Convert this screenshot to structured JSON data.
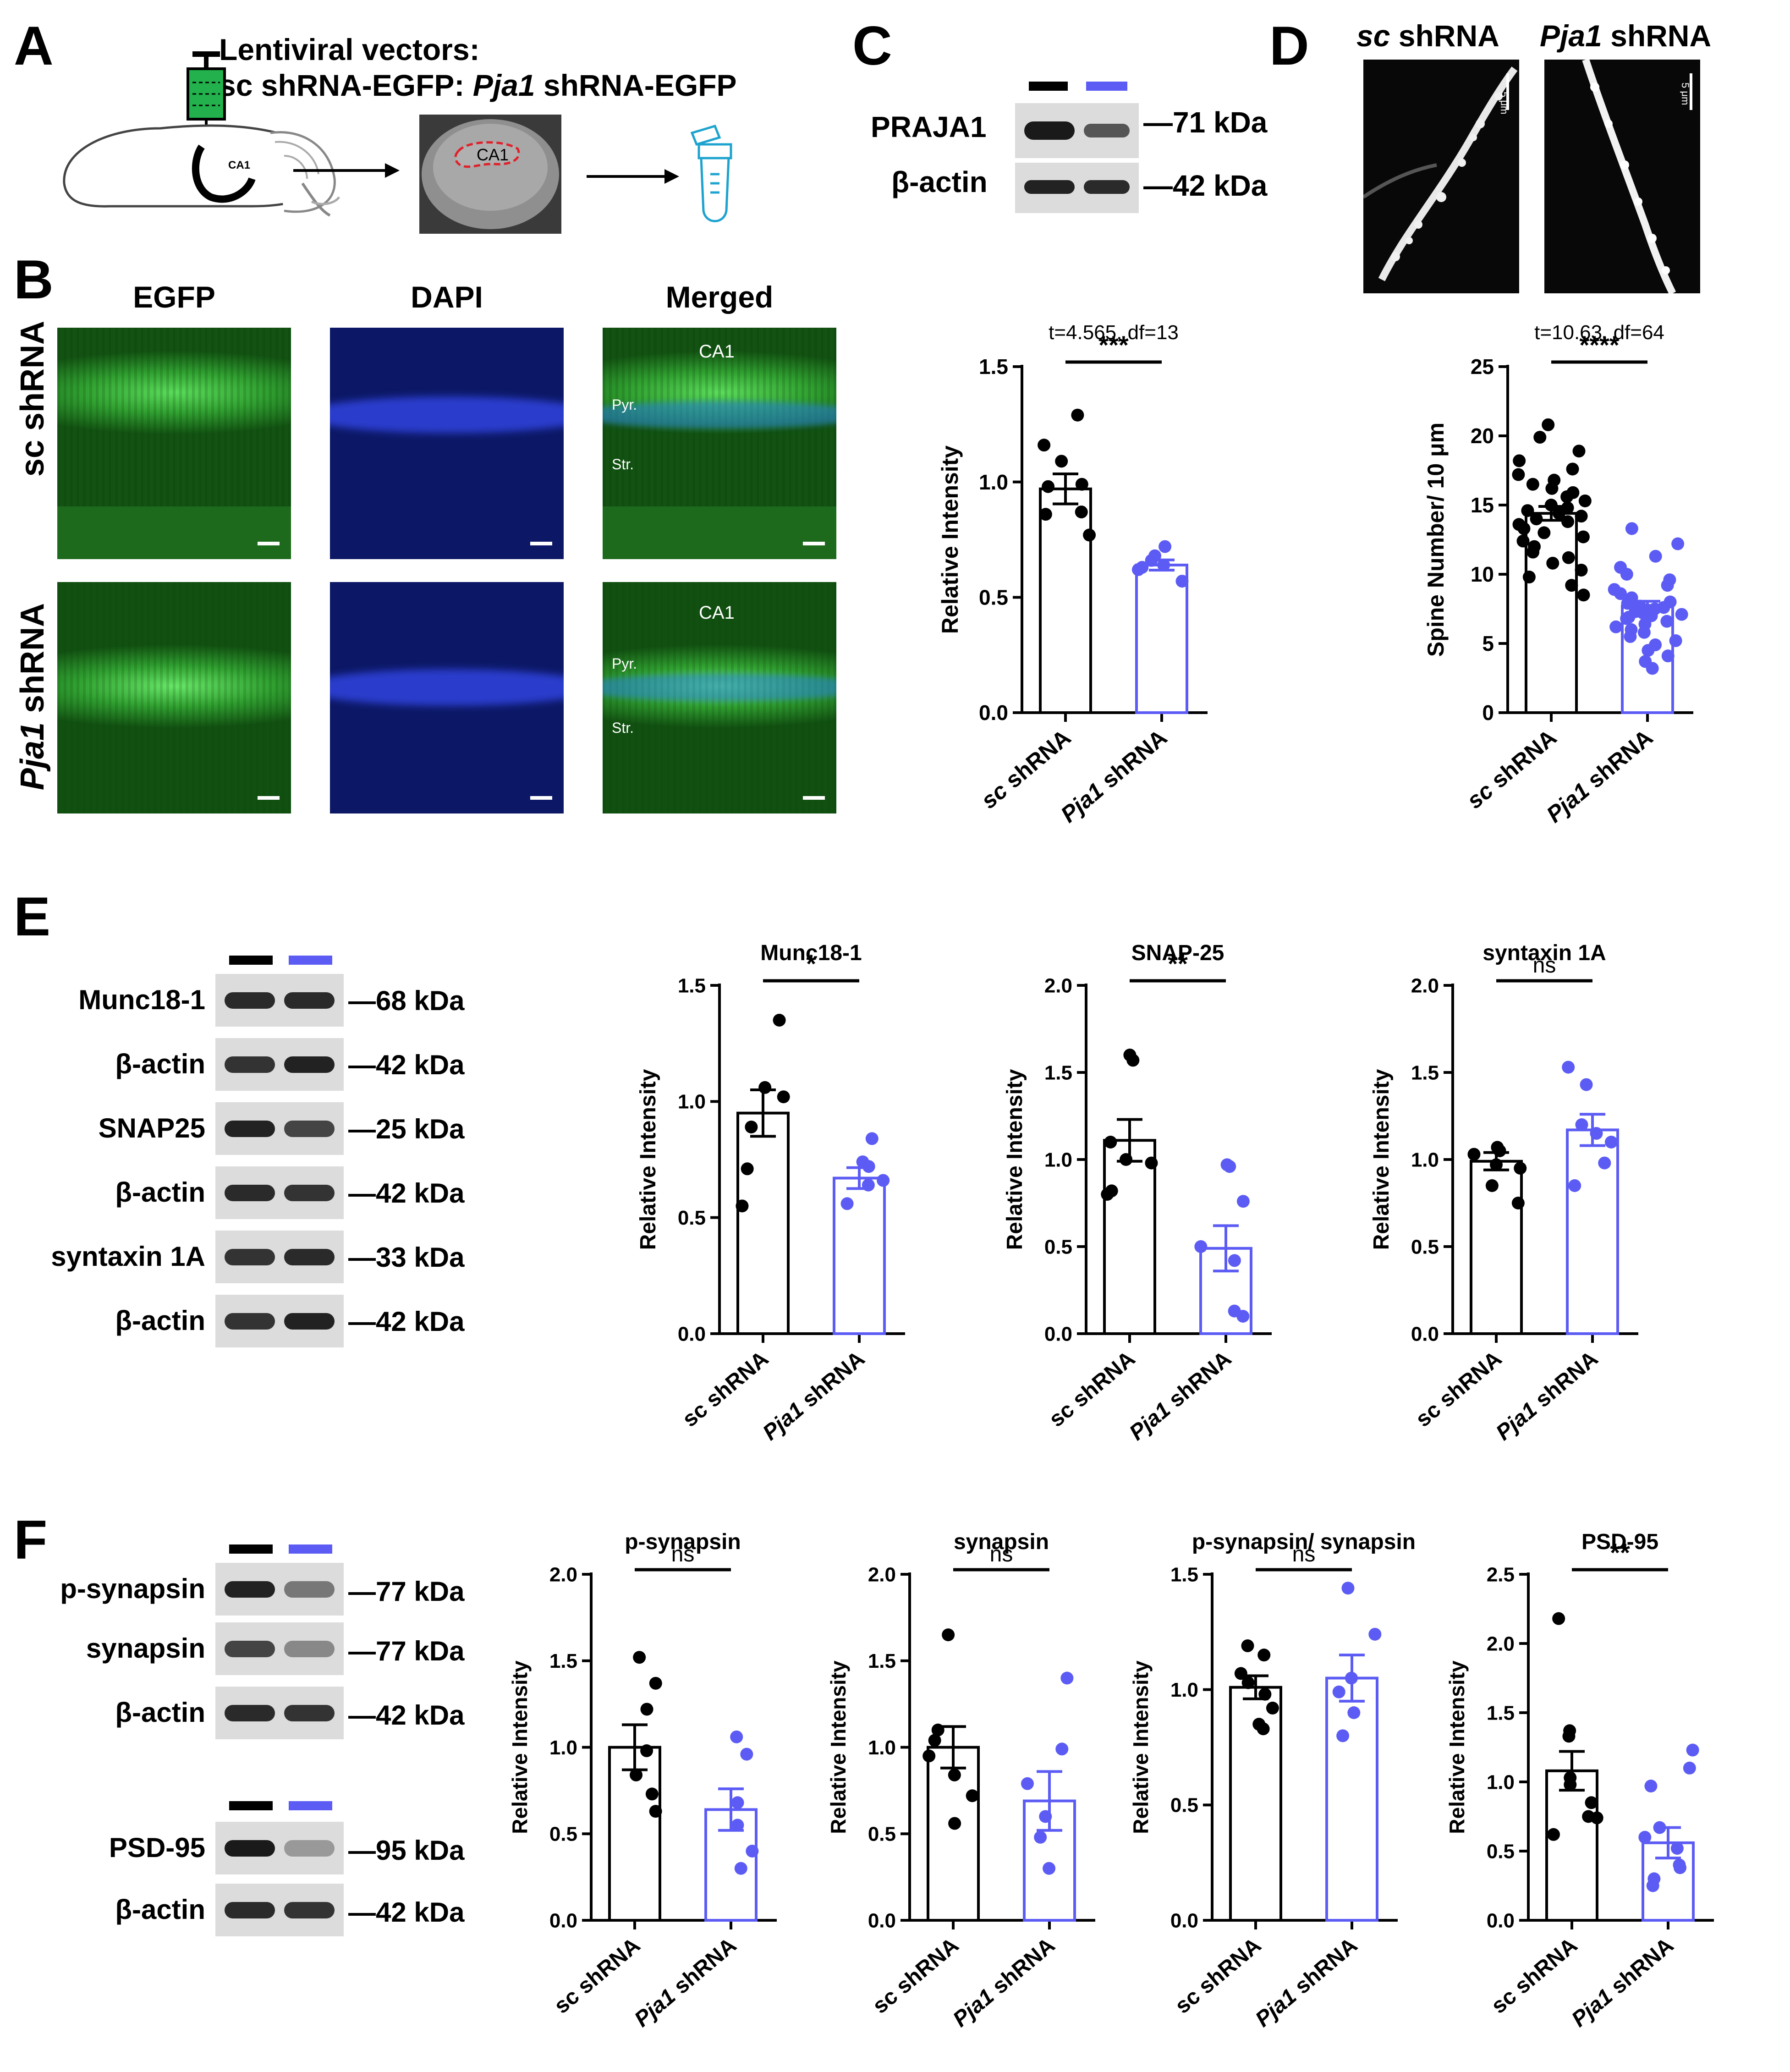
{
  "panels": {
    "A": {
      "label": "A",
      "vector_title": "Lentiviral vectors:",
      "vector_line_pre": "sc shRNA-EGFP: ",
      "vector_line_gene": "Pja1",
      "vector_line_post": " shRNA-EGFP",
      "brain_region": "CA1",
      "slice_region": "CA1"
    },
    "B": {
      "label": "B",
      "col_egfp": "EGFP",
      "col_dapi": "DAPI",
      "col_merged": "Merged",
      "row_sc_pre": "sc",
      "row_sc_post": " shRNA",
      "row_pja_pre": "Pja1",
      "row_pja_post": " shRNA",
      "ca1": "CA1",
      "pyr": "Pyr.",
      "str": "Str."
    },
    "C": {
      "label": "C",
      "rows": [
        {
          "label": "PRAJA1",
          "kda": "—71 kDa"
        },
        {
          "label": "β-actin",
          "kda": "—42 kDa"
        }
      ]
    },
    "D": {
      "label": "D",
      "img_sc_pre": "sc",
      "img_sc_post": " shRNA",
      "img_pja_pre": "Pja1",
      "img_pja_post": " shRNA",
      "scale": "5 μm"
    },
    "E": {
      "label": "E",
      "rows": [
        {
          "label": "Munc18-1",
          "kda": "—68 kDa"
        },
        {
          "label": "β-actin",
          "kda": "—42 kDa"
        },
        {
          "label": "SNAP25",
          "kda": "—25 kDa"
        },
        {
          "label": "β-actin",
          "kda": "—42 kDa"
        },
        {
          "label": "syntaxin 1A",
          "kda": "—33 kDa"
        },
        {
          "label": "β-actin",
          "kda": "—42 kDa"
        }
      ]
    },
    "F": {
      "label": "F",
      "rows": [
        {
          "label": "p-synapsin",
          "kda": "—77 kDa"
        },
        {
          "label": "synapsin",
          "kda": "—77 kDa"
        },
        {
          "label": "β-actin",
          "kda": "—42 kDa"
        },
        {
          "label": "PSD-95",
          "kda": "—95 kDa"
        },
        {
          "label": "β-actin",
          "kda": "—42 kDa"
        }
      ]
    }
  },
  "colors": {
    "sc": "#000000",
    "pja1": "#5c5cf5",
    "egfp": "#2f9e2f",
    "dapi": "#1a2bb0"
  },
  "chart_data": [
    {
      "id": "C",
      "type": "bar",
      "title": "",
      "stat": "t=4.565, df=13",
      "sig": "***",
      "ylabel": "Relative Intensity",
      "ylim": [
        0,
        1.5
      ],
      "yticks": [
        0.0,
        0.5,
        1.0,
        1.5
      ],
      "tick_decimals": 1,
      "categories": [
        {
          "pre": "sc",
          "post": " shRNA"
        },
        {
          "pre": "Pja1",
          "post": " shRNA"
        }
      ],
      "means": [
        0.97,
        0.64
      ],
      "sem": [
        0.065,
        0.022
      ],
      "points": [
        [
          1.29,
          1.16,
          1.09,
          0.99,
          0.98,
          0.87,
          0.86,
          0.77
        ],
        [
          0.72,
          0.68,
          0.66,
          0.64,
          0.63,
          0.62,
          0.57
        ]
      ]
    },
    {
      "id": "D",
      "type": "bar",
      "title": "",
      "stat": "t=10.63, df=64",
      "sig": "****",
      "ylabel": "Spine Number/ 10 μm",
      "ylim": [
        0,
        25
      ],
      "yticks": [
        0,
        5,
        10,
        15,
        20,
        25
      ],
      "tick_decimals": 0,
      "categories": [
        {
          "pre": "sc",
          "post": " shRNA"
        },
        {
          "pre": "Pja1",
          "post": " shRNA"
        }
      ],
      "means": [
        14.4,
        7.7
      ],
      "sem": [
        0.5,
        0.35
      ],
      "points": [
        [
          20.8,
          19.9,
          18.9,
          18.2,
          17.6,
          17.2,
          16.8,
          16.5,
          16.2,
          15.9,
          15.6,
          15.3,
          15.0,
          14.8,
          14.6,
          14.4,
          14.2,
          14.0,
          13.8,
          13.6,
          13.3,
          13.0,
          12.7,
          12.4,
          12.0,
          11.6,
          11.2,
          10.8,
          10.3,
          9.8,
          9.2,
          8.5
        ],
        [
          13.3,
          12.2,
          11.3,
          10.5,
          10.0,
          9.6,
          9.2,
          8.9,
          8.6,
          8.3,
          8.0,
          7.9,
          7.7,
          7.5,
          7.4,
          7.3,
          7.1,
          7.0,
          6.8,
          6.6,
          6.4,
          6.2,
          6.0,
          5.8,
          5.5,
          5.2,
          4.9,
          4.5,
          4.1,
          3.7,
          3.2,
          7.6,
          7.2,
          6.9
        ]
      ]
    },
    {
      "id": "E1",
      "type": "bar",
      "title": "Munc18-1",
      "stat": "",
      "sig": "*",
      "ylabel": "Relative Intensity",
      "ylim": [
        0,
        1.5
      ],
      "yticks": [
        0.0,
        0.5,
        1.0,
        1.5
      ],
      "tick_decimals": 1,
      "categories": [
        {
          "pre": "sc shRNA",
          "post": ""
        },
        {
          "pre": "Pja1",
          "post": " shRNA"
        }
      ],
      "means": [
        0.95,
        0.67
      ],
      "sem": [
        0.1,
        0.045
      ],
      "points": [
        [
          1.35,
          1.06,
          1.02,
          0.89,
          0.71,
          0.55
        ],
        [
          0.84,
          0.74,
          0.72,
          0.66,
          0.64,
          0.56
        ]
      ]
    },
    {
      "id": "E2",
      "type": "bar",
      "title": "SNAP-25",
      "stat": "",
      "sig": "**",
      "ylabel": "Relative Intensity",
      "ylim": [
        0,
        2.0
      ],
      "yticks": [
        0.0,
        0.5,
        1.0,
        1.5,
        2.0
      ],
      "tick_decimals": 1,
      "categories": [
        {
          "pre": "sc shRNA",
          "post": ""
        },
        {
          "pre": "Pja1",
          "post": " shRNA"
        }
      ],
      "means": [
        1.11,
        0.49
      ],
      "sem": [
        0.12,
        0.13
      ],
      "points": [
        [
          1.6,
          1.57,
          1.1,
          1.0,
          0.98,
          0.82,
          0.8
        ],
        [
          0.97,
          0.96,
          0.76,
          0.5,
          0.42,
          0.13,
          0.1
        ]
      ]
    },
    {
      "id": "E3",
      "type": "bar",
      "title": "syntaxin 1A",
      "stat": "",
      "sig": "ns",
      "ylabel": "Relative Intensity",
      "ylim": [
        0,
        2.0
      ],
      "yticks": [
        0.0,
        0.5,
        1.0,
        1.5,
        2.0
      ],
      "tick_decimals": 1,
      "categories": [
        {
          "pre": "sc shRNA",
          "post": ""
        },
        {
          "pre": "Pja1",
          "post": " shRNA"
        }
      ],
      "means": [
        0.99,
        1.17
      ],
      "sem": [
        0.05,
        0.09
      ],
      "points": [
        [
          1.07,
          1.05,
          1.03,
          0.97,
          0.95,
          0.85,
          0.75
        ],
        [
          1.53,
          1.43,
          1.2,
          1.15,
          1.1,
          0.98,
          0.85
        ]
      ]
    },
    {
      "id": "F1",
      "type": "bar",
      "title": "p-synapsin",
      "stat": "",
      "sig": "ns",
      "ylabel": "Relative Intensity",
      "ylim": [
        0,
        2.0
      ],
      "yticks": [
        0.0,
        0.5,
        1.0,
        1.5,
        2.0
      ],
      "tick_decimals": 1,
      "categories": [
        {
          "pre": "sc shRNA",
          "post": ""
        },
        {
          "pre": "Pja1",
          "post": " shRNA"
        }
      ],
      "means": [
        1.0,
        0.64
      ],
      "sem": [
        0.13,
        0.12
      ],
      "points": [
        [
          1.52,
          1.37,
          1.22,
          0.98,
          0.84,
          0.73,
          0.63
        ],
        [
          1.06,
          0.96,
          0.68,
          0.55,
          0.4,
          0.3
        ]
      ]
    },
    {
      "id": "F2",
      "type": "bar",
      "title": "synapsin",
      "stat": "",
      "sig": "ns",
      "ylabel": "Relative Intensity",
      "ylim": [
        0,
        2.0
      ],
      "yticks": [
        0.0,
        0.5,
        1.0,
        1.5,
        2.0
      ],
      "tick_decimals": 1,
      "categories": [
        {
          "pre": "sc shRNA",
          "post": ""
        },
        {
          "pre": "Pja1",
          "post": " shRNA"
        }
      ],
      "means": [
        1.0,
        0.69
      ],
      "sem": [
        0.12,
        0.17
      ],
      "points": [
        [
          1.65,
          1.1,
          1.04,
          0.95,
          0.84,
          0.72,
          0.56
        ],
        [
          1.4,
          0.99,
          0.79,
          0.6,
          0.48,
          0.3
        ]
      ]
    },
    {
      "id": "F3",
      "type": "bar",
      "title": "p-synapsin/ synapsin",
      "stat": "",
      "sig": "ns",
      "ylabel": "Relative Intensity",
      "ylim": [
        0,
        1.5
      ],
      "yticks": [
        0.0,
        0.5,
        1.0,
        1.5
      ],
      "tick_decimals": 1,
      "categories": [
        {
          "pre": "sc shRNA",
          "post": ""
        },
        {
          "pre": "Pja1",
          "post": " shRNA"
        }
      ],
      "means": [
        1.01,
        1.05
      ],
      "sem": [
        0.05,
        0.1
      ],
      "points": [
        [
          1.19,
          1.15,
          1.07,
          1.03,
          0.98,
          0.92,
          0.85,
          0.83
        ],
        [
          1.44,
          1.24,
          1.05,
          0.99,
          0.9,
          0.8
        ]
      ]
    },
    {
      "id": "F4",
      "type": "bar",
      "title": "PSD-95",
      "stat": "",
      "sig": "**",
      "ylabel": "Relative Intensity",
      "ylim": [
        0,
        2.5
      ],
      "yticks": [
        0.0,
        0.5,
        1.0,
        1.5,
        2.0,
        2.5
      ],
      "tick_decimals": 1,
      "categories": [
        {
          "pre": "sc shRNA",
          "post": ""
        },
        {
          "pre": "Pja1",
          "post": " shRNA"
        }
      ],
      "means": [
        1.08,
        0.56
      ],
      "sem": [
        0.14,
        0.11
      ],
      "points": [
        [
          2.18,
          1.37,
          1.33,
          1.03,
          0.98,
          0.85,
          0.75,
          0.74,
          0.62
        ],
        [
          1.23,
          1.1,
          0.97,
          0.67,
          0.6,
          0.52,
          0.4,
          0.38,
          0.3,
          0.25
        ]
      ]
    }
  ]
}
